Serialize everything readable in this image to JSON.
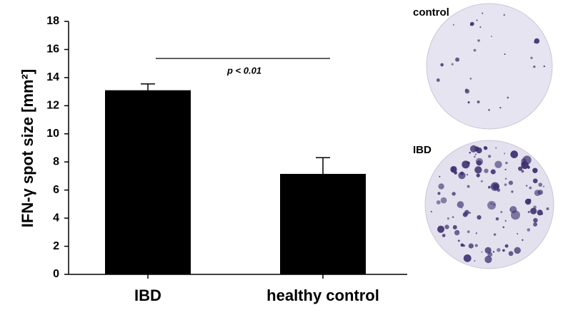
{
  "chart_data": {
    "type": "bar",
    "y_label": "IFN-γ spot size [mm²]",
    "categories": [
      "IBD",
      "healthy control"
    ],
    "values": [
      13.1,
      7.15
    ],
    "errors": [
      0.45,
      1.15
    ],
    "color": "#000000",
    "ylim": [
      0,
      18
    ],
    "yticks": [
      0,
      2,
      4,
      6,
      8,
      10,
      12,
      14,
      16,
      18
    ],
    "annotation": "p < 0.01",
    "images": [
      {
        "label": "control"
      },
      {
        "label": "IBD"
      }
    ]
  }
}
